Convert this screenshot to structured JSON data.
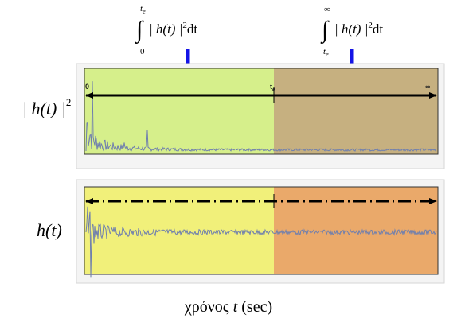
{
  "formulas": {
    "left": {
      "lower": "0",
      "upper": "t",
      "upper_sub": "e",
      "integrand": "| h(t) |",
      "power": "2",
      "diff": "dt"
    },
    "right": {
      "lower": "t",
      "lower_sub": "e",
      "upper": "∞",
      "integrand": "| h(t) |",
      "power": "2",
      "diff": "dt"
    }
  },
  "panels": {
    "top": {
      "label": "| h(t) |",
      "label_power": "2",
      "left_color": "#d6ef8b",
      "right_color": "#c6b080",
      "markers": {
        "start": "0",
        "split": "t",
        "split_sub": "e",
        "end": "∞"
      }
    },
    "bottom": {
      "label": "h(t)",
      "left_color": "#f1f07a",
      "right_color": "#eaa96a"
    }
  },
  "xaxis_label": {
    "greek": "χρόνος",
    "variable": "t",
    "unit": "(sec)"
  },
  "colors": {
    "arrow_blue": "#1414e6",
    "signal": "#6f7fae",
    "frame": "#333333"
  }
}
